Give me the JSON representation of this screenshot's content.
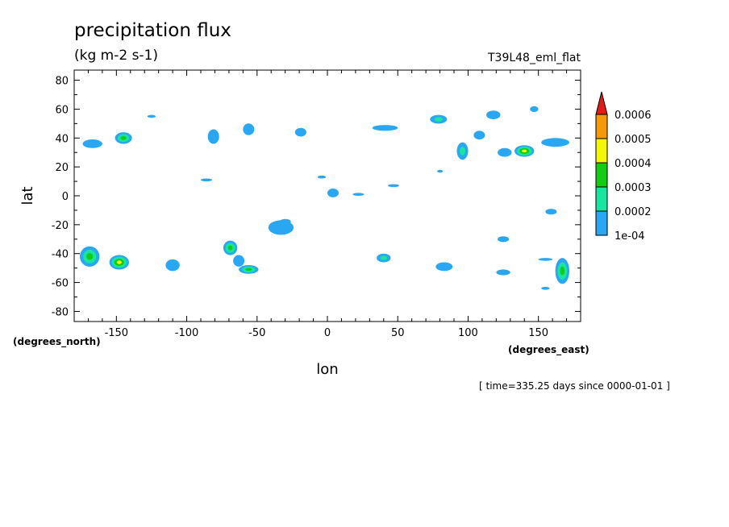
{
  "chart_data": {
    "type": "heatmap",
    "title": "precipitation flux",
    "units": "(kg m-2 s-1)",
    "experiment": "T39L48_eml_flat",
    "xlabel": "lon",
    "ylabel": "lat",
    "x_unit_label": "(degrees_east)",
    "y_unit_label": "(degrees_north)",
    "time_note": "[ time=335.25 days since 0000-01-01 ]",
    "xlim": [
      -180,
      180
    ],
    "ylim": [
      -87,
      87
    ],
    "x_ticks": [
      -150,
      -100,
      -50,
      0,
      50,
      100,
      150
    ],
    "y_ticks": [
      80,
      60,
      40,
      20,
      0,
      -20,
      -40,
      -60,
      -80
    ],
    "x_tick_labels": [
      "-150",
      "-100",
      "-50",
      "0",
      "50",
      "100",
      "150"
    ],
    "y_tick_labels": [
      "80",
      "60",
      "40",
      "20",
      "0",
      "-20",
      "-40",
      "-60",
      "-80"
    ],
    "colorbar": {
      "levels": [
        0.0001,
        0.0002,
        0.0003,
        0.0004,
        0.0005,
        0.0006
      ],
      "labels": [
        "1e-04",
        "0.0002",
        "0.0003",
        "0.0004",
        "0.0005",
        "0.0006"
      ],
      "colors": [
        "#2aa7f2",
        "#18e6a0",
        "#14cc14",
        "#f6f60a",
        "#f49a0a",
        "#e21a1a"
      ]
    },
    "blobs": [
      {
        "lon": -167,
        "lat": 36,
        "rlon": 7,
        "rlat": 3,
        "level": 1
      },
      {
        "lon": -145,
        "lat": 40,
        "rlon": 6,
        "rlat": 4,
        "level": 3
      },
      {
        "lon": -125,
        "lat": 55,
        "rlon": 3,
        "rlat": 1,
        "level": 1
      },
      {
        "lon": -81,
        "lat": 41,
        "rlon": 4,
        "rlat": 5,
        "level": 1
      },
      {
        "lon": -56,
        "lat": 46,
        "rlon": 4,
        "rlat": 4,
        "level": 1
      },
      {
        "lon": -19,
        "lat": 44,
        "rlon": 4,
        "rlat": 3,
        "level": 1
      },
      {
        "lon": 41,
        "lat": 47,
        "rlon": 9,
        "rlat": 2,
        "level": 1
      },
      {
        "lon": 79,
        "lat": 53,
        "rlon": 6,
        "rlat": 3,
        "level": 2
      },
      {
        "lon": 96,
        "lat": 31,
        "rlon": 4,
        "rlat": 6,
        "level": 2
      },
      {
        "lon": 108,
        "lat": 42,
        "rlon": 4,
        "rlat": 3,
        "level": 1
      },
      {
        "lon": 118,
        "lat": 56,
        "rlon": 5,
        "rlat": 3,
        "level": 1
      },
      {
        "lon": 126,
        "lat": 30,
        "rlon": 5,
        "rlat": 3,
        "level": 1
      },
      {
        "lon": 140,
        "lat": 31,
        "rlon": 7,
        "rlat": 4,
        "level": 4
      },
      {
        "lon": 147,
        "lat": 60,
        "rlon": 3,
        "rlat": 2,
        "level": 1
      },
      {
        "lon": 162,
        "lat": 37,
        "rlon": 10,
        "rlat": 3,
        "level": 1
      },
      {
        "lon": -86,
        "lat": 11,
        "rlon": 4,
        "rlat": 1,
        "level": 1
      },
      {
        "lon": -4,
        "lat": 13,
        "rlon": 3,
        "rlat": 1,
        "level": 1
      },
      {
        "lon": 4,
        "lat": 2,
        "rlon": 4,
        "rlat": 3,
        "level": 1
      },
      {
        "lon": 22,
        "lat": 1,
        "rlon": 4,
        "rlat": 1,
        "level": 1
      },
      {
        "lon": 47,
        "lat": 7,
        "rlon": 4,
        "rlat": 1,
        "level": 1
      },
      {
        "lon": 80,
        "lat": 17,
        "rlon": 2,
        "rlat": 1,
        "level": 1
      },
      {
        "lon": 159,
        "lat": -11,
        "rlon": 4,
        "rlat": 2,
        "level": 1
      },
      {
        "lon": -33,
        "lat": -22,
        "rlon": 9,
        "rlat": 5,
        "level": 1
      },
      {
        "lon": -30,
        "lat": -18,
        "rlon": 4,
        "rlat": 2,
        "level": 1
      },
      {
        "lon": -169,
        "lat": -42,
        "rlon": 7,
        "rlat": 7,
        "level": 3
      },
      {
        "lon": -148,
        "lat": -46,
        "rlon": 7,
        "rlat": 5,
        "level": 4
      },
      {
        "lon": -110,
        "lat": -48,
        "rlon": 5,
        "rlat": 4,
        "level": 1
      },
      {
        "lon": -69,
        "lat": -36,
        "rlon": 5,
        "rlat": 5,
        "level": 3
      },
      {
        "lon": -63,
        "lat": -45,
        "rlon": 4,
        "rlat": 4,
        "level": 1
      },
      {
        "lon": -56,
        "lat": -51,
        "rlon": 7,
        "rlat": 3,
        "level": 3
      },
      {
        "lon": 40,
        "lat": -43,
        "rlon": 5,
        "rlat": 3,
        "level": 2
      },
      {
        "lon": 83,
        "lat": -49,
        "rlon": 6,
        "rlat": 3,
        "level": 1
      },
      {
        "lon": 125,
        "lat": -30,
        "rlon": 4,
        "rlat": 2,
        "level": 1
      },
      {
        "lon": 125,
        "lat": -53,
        "rlon": 5,
        "rlat": 2,
        "level": 1
      },
      {
        "lon": 167,
        "lat": -52,
        "rlon": 5,
        "rlat": 9,
        "level": 3
      },
      {
        "lon": 155,
        "lat": -44,
        "rlon": 5,
        "rlat": 1,
        "level": 1
      },
      {
        "lon": 155,
        "lat": -64,
        "rlon": 3,
        "rlat": 1,
        "level": 1
      }
    ]
  }
}
